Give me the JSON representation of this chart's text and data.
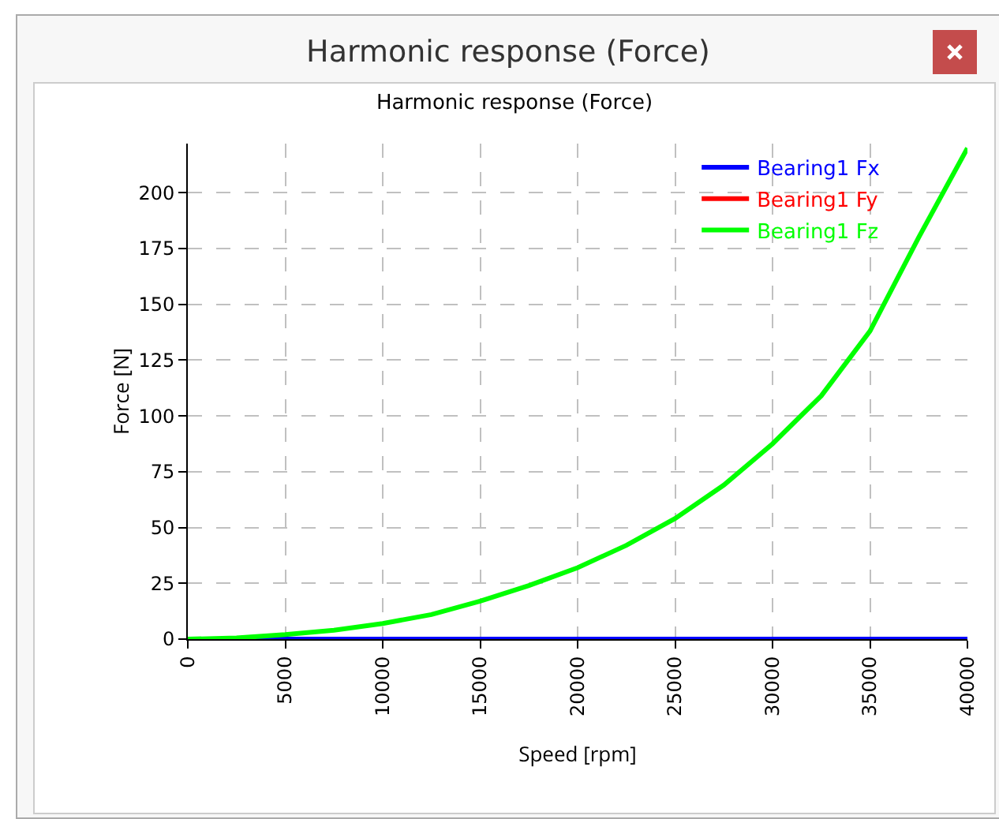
{
  "chart_data": {
    "type": "line",
    "title": "Harmonic response (Force)",
    "xlabel": "Speed [rpm]",
    "ylabel": "Force [N]",
    "x": [
      0,
      2500,
      5000,
      7500,
      10000,
      12500,
      15000,
      17500,
      20000,
      22500,
      25000,
      27500,
      30000,
      32500,
      35000,
      37500,
      40000
    ],
    "series": [
      {
        "name": "Bearing1 Fx",
        "color": "#0000ff",
        "values": [
          0,
          0,
          0,
          0,
          0,
          0,
          0,
          0,
          0,
          0,
          0,
          0,
          0,
          0,
          0,
          0,
          0
        ]
      },
      {
        "name": "Bearing1 Fy",
        "color": "#ff0000",
        "values": [
          null,
          null,
          null,
          null,
          null,
          null,
          null,
          null,
          null,
          null,
          null,
          null,
          null,
          null,
          null,
          null,
          null
        ]
      },
      {
        "name": "Bearing1 Fz",
        "color": "#00ff00",
        "values": [
          0,
          0.5,
          2,
          4,
          7,
          11,
          17,
          24,
          32,
          42,
          54,
          69,
          87.5,
          109,
          138,
          180,
          220
        ]
      }
    ],
    "xlim": [
      0,
      40000
    ],
    "xticks": [
      0,
      5000,
      10000,
      15000,
      20000,
      25000,
      30000,
      35000,
      40000
    ],
    "ylim": [
      0,
      222
    ],
    "yticks": [
      0,
      25,
      50,
      75,
      100,
      125,
      150,
      175,
      200
    ],
    "grid": true,
    "legend": "top right",
    "line_style": "solid",
    "marker": "none"
  }
}
